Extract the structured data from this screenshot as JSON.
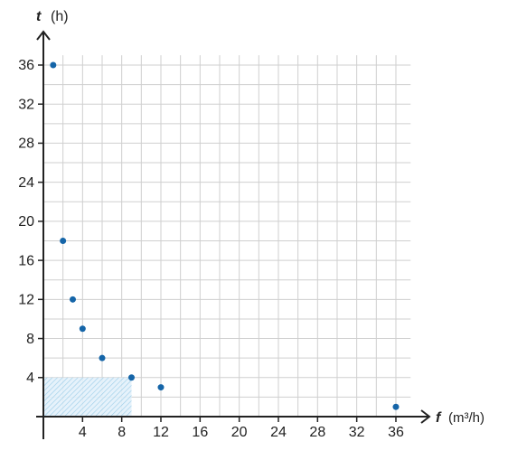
{
  "chart_data": {
    "type": "scatter",
    "x_label": "f",
    "x_unit": "(m³/h)",
    "y_label": "t",
    "y_unit": "(h)",
    "series": [
      {
        "color": "#1565a8",
        "x": [
          1,
          2,
          3,
          4,
          6,
          9,
          12,
          36
        ],
        "values": [
          36,
          18,
          12,
          9,
          6,
          4,
          3,
          1
        ]
      }
    ],
    "xlim": [
      0,
      37.5
    ],
    "ylim": [
      0,
      37
    ],
    "xticks": [
      4,
      8,
      12,
      16,
      20,
      24,
      28,
      32,
      36
    ],
    "yticks": [
      4,
      8,
      12,
      16,
      20,
      24,
      28,
      32,
      36
    ],
    "grid": true
  }
}
